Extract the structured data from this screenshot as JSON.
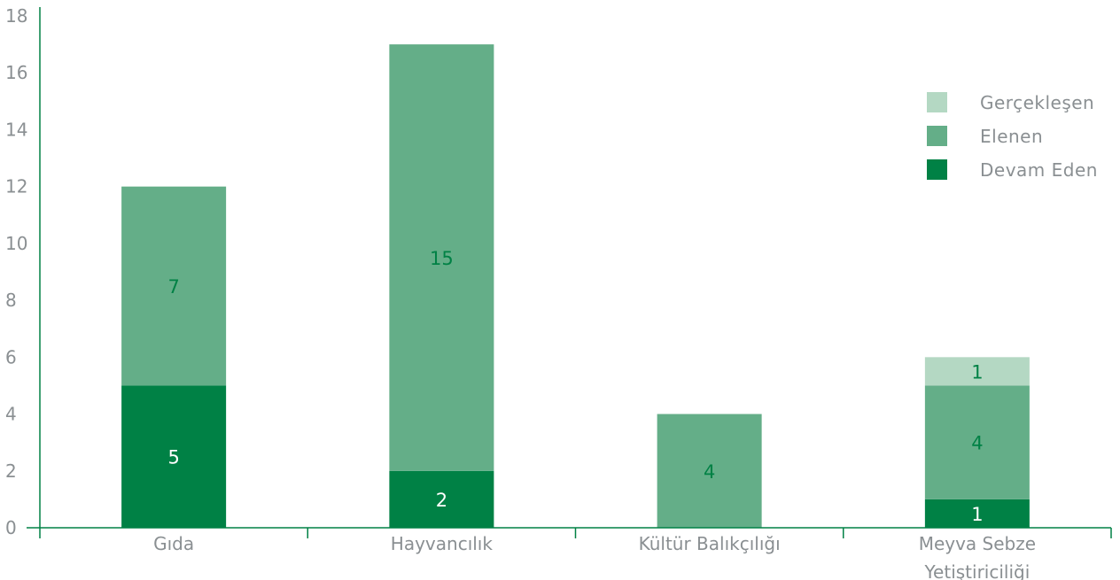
{
  "chart_data": {
    "type": "bar",
    "stacked": true,
    "categories": [
      "Gıda",
      "Hayvancılık",
      "Kültür Balıkçılığı",
      "Meyva Sebze Yetiştiriciliği"
    ],
    "series": [
      {
        "name": "Devam Eden",
        "values": [
          5,
          2,
          0,
          1
        ],
        "color": "#008145",
        "label_color": "#ffffff"
      },
      {
        "name": "Elenen",
        "values": [
          7,
          15,
          4,
          4
        ],
        "color": "#64ae88",
        "label_color": "#008145"
      },
      {
        "name": "Gerçekleşen",
        "values": [
          0,
          0,
          0,
          1
        ],
        "color": "#b4d8c3",
        "label_color": "#008145"
      }
    ],
    "legend_order": [
      "Gerçekleşen",
      "Elenen",
      "Devam Eden"
    ],
    "legend_position": "top-right",
    "yticks": [
      0,
      2,
      4,
      6,
      8,
      10,
      12,
      14,
      16,
      18
    ],
    "ylim": [
      0,
      18
    ],
    "grid": false,
    "axis_color": "#008145",
    "tick_color": "#8a8f92"
  }
}
